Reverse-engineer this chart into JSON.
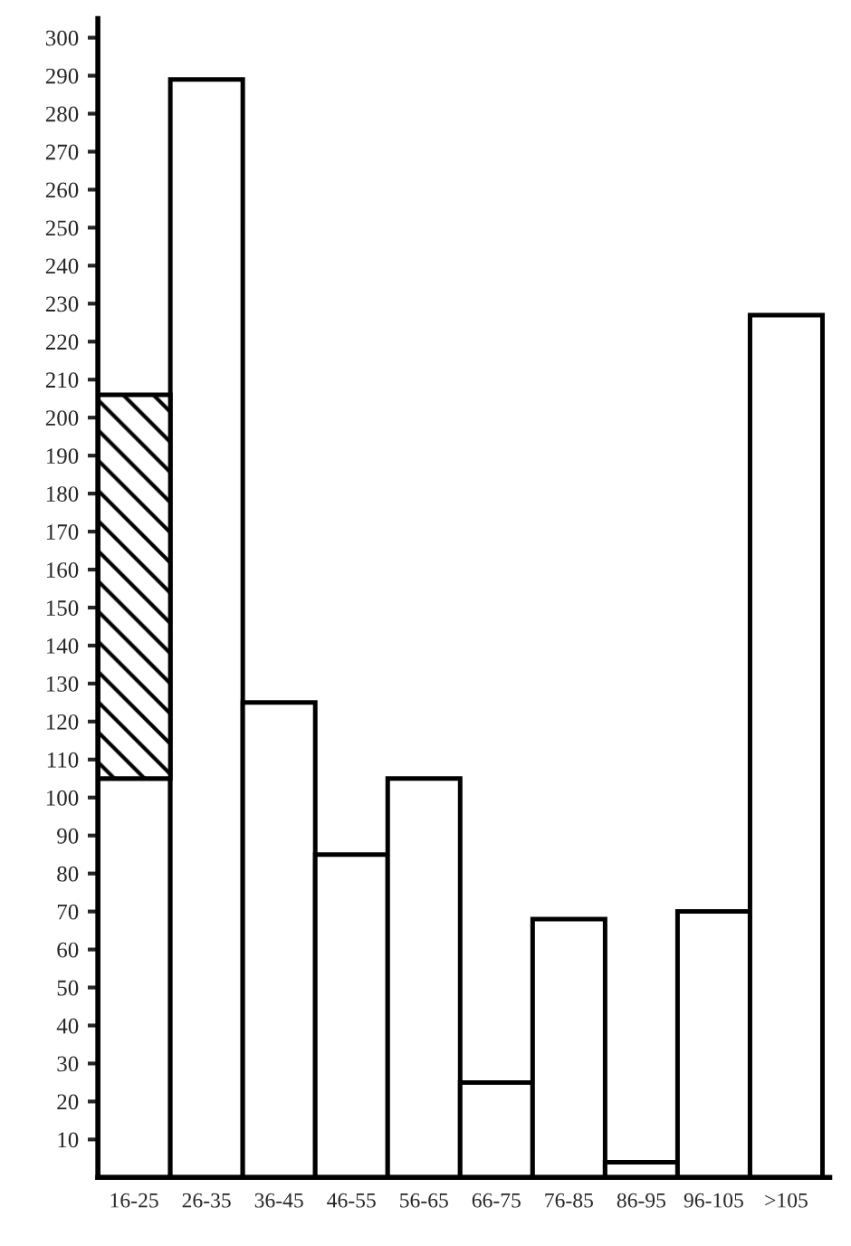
{
  "chart_data": {
    "type": "bar",
    "stacked": true,
    "categories": [
      "16-25",
      "26-35",
      "36-45",
      "46-55",
      "56-65",
      "66-75",
      "76-85",
      "86-95",
      "96-105",
      ">105"
    ],
    "series": [
      {
        "color": "#ffffff",
        "values": [
          105,
          289,
          125,
          85,
          105,
          25,
          68,
          4,
          70,
          227
        ]
      },
      {
        "color": "#000000",
        "values": [
          101,
          null,
          null,
          null,
          null,
          null,
          null,
          null,
          null,
          null
        ]
      }
    ],
    "ylim": [
      0,
      305
    ],
    "yticks": [
      10,
      20,
      30,
      40,
      50,
      60,
      70,
      80,
      90,
      100,
      110,
      120,
      130,
      140,
      150,
      160,
      170,
      180,
      190,
      200,
      210,
      220,
      230,
      240,
      250,
      260,
      270,
      280,
      290,
      300
    ],
    "grid": false,
    "legend": false
  }
}
